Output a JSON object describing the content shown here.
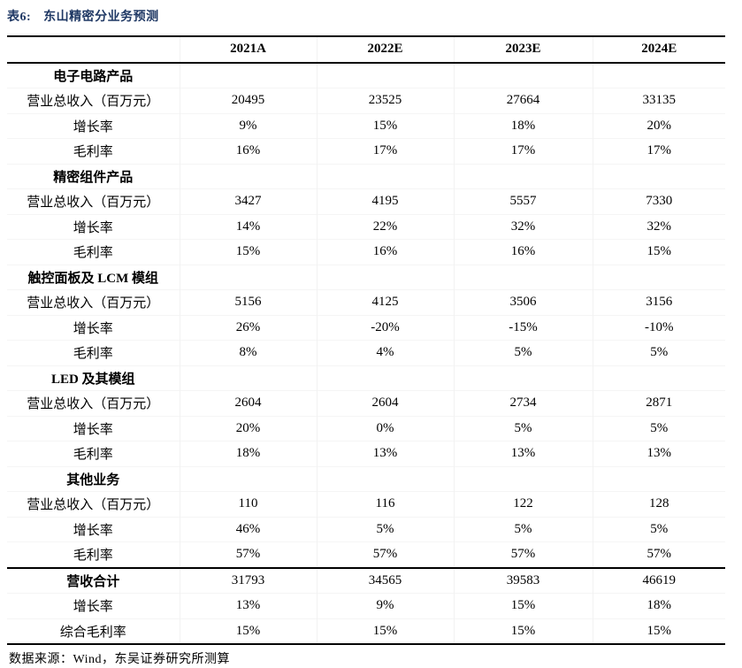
{
  "title": {
    "tag": "表6:",
    "text": "东山精密分业务预测"
  },
  "table": {
    "columns": [
      "2021A",
      "2022E",
      "2023E",
      "2024E"
    ],
    "rows": [
      {
        "section": true,
        "bold": true,
        "label": "电子电路产品",
        "values": [
          "",
          "",
          "",
          ""
        ]
      },
      {
        "label": "营业总收入（百万元）",
        "values": [
          "20495",
          "23525",
          "27664",
          "33135"
        ]
      },
      {
        "label": "增长率",
        "values": [
          "9%",
          "15%",
          "18%",
          "20%"
        ]
      },
      {
        "label": "毛利率",
        "values": [
          "16%",
          "17%",
          "17%",
          "17%"
        ]
      },
      {
        "section": true,
        "bold": true,
        "label": "精密组件产品",
        "values": [
          "",
          "",
          "",
          ""
        ]
      },
      {
        "label": "营业总收入（百万元）",
        "values": [
          "3427",
          "4195",
          "5557",
          "7330"
        ]
      },
      {
        "label": "增长率",
        "values": [
          "14%",
          "22%",
          "32%",
          "32%"
        ]
      },
      {
        "label": "毛利率",
        "values": [
          "15%",
          "16%",
          "16%",
          "15%"
        ]
      },
      {
        "section": true,
        "bold": true,
        "label": "触控面板及 LCM 模组",
        "values": [
          "",
          "",
          "",
          ""
        ]
      },
      {
        "label": "营业总收入（百万元）",
        "values": [
          "5156",
          "4125",
          "3506",
          "3156"
        ]
      },
      {
        "label": "增长率",
        "values": [
          "26%",
          "-20%",
          "-15%",
          "-10%"
        ]
      },
      {
        "label": "毛利率",
        "values": [
          "8%",
          "4%",
          "5%",
          "5%"
        ]
      },
      {
        "section": true,
        "bold": true,
        "label": "LED 及其模组",
        "values": [
          "",
          "",
          "",
          ""
        ]
      },
      {
        "label": "营业总收入（百万元）",
        "values": [
          "2604",
          "2604",
          "2734",
          "2871"
        ]
      },
      {
        "label": "增长率",
        "values": [
          "20%",
          "0%",
          "5%",
          "5%"
        ]
      },
      {
        "label": "毛利率",
        "values": [
          "18%",
          "13%",
          "13%",
          "13%"
        ]
      },
      {
        "section": true,
        "bold": true,
        "label": "其他业务",
        "values": [
          "",
          "",
          "",
          ""
        ]
      },
      {
        "label": "营业总收入（百万元）",
        "values": [
          "110",
          "116",
          "122",
          "128"
        ]
      },
      {
        "label": "增长率",
        "values": [
          "46%",
          "5%",
          "5%",
          "5%"
        ]
      },
      {
        "label": "毛利率",
        "values": [
          "57%",
          "57%",
          "57%",
          "57%"
        ]
      },
      {
        "bold": true,
        "rule_above": true,
        "label": "营收合计",
        "values": [
          "31793",
          "34565",
          "39583",
          "46619"
        ]
      },
      {
        "label": "增长率",
        "values": [
          "13%",
          "9%",
          "15%",
          "18%"
        ]
      },
      {
        "label": "综合毛利率",
        "values": [
          "15%",
          "15%",
          "15%",
          "15%"
        ]
      }
    ]
  },
  "footer": {
    "source": "数据来源：Wind，东吴证券研究所测算"
  },
  "colors": {
    "title_navy": "#1f3864",
    "rule_black": "#000000",
    "grid_light": "#f2f2f2"
  }
}
